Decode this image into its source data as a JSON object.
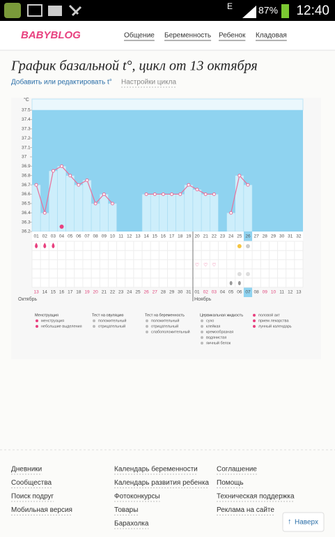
{
  "status_bar": {
    "network": "E",
    "battery": "87%",
    "time": "12:40"
  },
  "header": {
    "logo": "BABYBLOG",
    "nav": [
      "Общение",
      "Беременность",
      "Ребенок",
      "Кладовая"
    ]
  },
  "page": {
    "title": "График базальной t°, цикл от 13 октября",
    "links": [
      "Добавить или редактировать t°",
      "Настройки цикла"
    ]
  },
  "chart_data": {
    "type": "line",
    "y_unit": "°C",
    "categories": [
      "01",
      "02",
      "03",
      "04",
      "05",
      "06",
      "07",
      "08",
      "09",
      "10",
      "11",
      "12",
      "13",
      "14",
      "15",
      "16",
      "17",
      "18",
      "19",
      "20",
      "21",
      "22",
      "23",
      "24",
      "25",
      "26",
      "27",
      "28",
      "29",
      "30",
      "31",
      "32"
    ],
    "dates": [
      "13",
      "14",
      "15",
      "16",
      "17",
      "18",
      "19",
      "20",
      "21",
      "22",
      "23",
      "24",
      "25",
      "26",
      "27",
      "28",
      "29",
      "30",
      "31",
      "01",
      "02",
      "03",
      "04",
      "05",
      "06",
      "07",
      "08",
      "09",
      "10",
      "11",
      "12",
      "13"
    ],
    "months": [
      "Октябрь",
      "Ноябрь"
    ],
    "values": [
      36.7,
      36.4,
      36.85,
      36.9,
      36.8,
      36.7,
      36.75,
      36.5,
      36.6,
      36.5,
      null,
      null,
      null,
      36.6,
      36.6,
      36.6,
      36.6,
      36.6,
      36.7,
      36.65,
      36.6,
      36.6,
      null,
      36.4,
      36.8,
      36.7,
      null,
      null,
      null,
      null,
      null,
      null
    ],
    "ylim": [
      36.2,
      37.5
    ],
    "yticks": [
      36.2,
      36.3,
      36.4,
      36.5,
      36.6,
      36.7,
      36.8,
      36.9,
      37,
      37.1,
      37.2,
      37.3,
      37.4,
      37.5
    ],
    "color": "#e8709a",
    "fill": "#cdeefb",
    "background": "#8fd3f0"
  },
  "legend": [
    {
      "title": "Менструация",
      "items": [
        "менструация",
        "небольшие выделения"
      ]
    },
    {
      "title": "Тест на овуляцию",
      "items": [
        "положительный",
        "отрицательный"
      ]
    },
    {
      "title": "Тест на беременность",
      "items": [
        "положительный",
        "отрицательный",
        "слабоположительный"
      ]
    },
    {
      "title": "Цервикальная жидкость",
      "items": [
        "сухо",
        "клейкая",
        "кремообразная",
        "водянистая",
        "яичный белок"
      ]
    },
    {
      "items": [
        "половой акт",
        "прием лекарства",
        "лунный календарь"
      ]
    }
  ],
  "footer": {
    "columns": [
      [
        "Дневники",
        "Сообщества",
        "Поиск подруг",
        "Мобильная версия"
      ],
      [
        "Календарь беременности",
        "Календарь развития ребенка",
        "Фотоконкурсы",
        "Товары",
        "Барахолка"
      ],
      [
        "Соглашение",
        "Помощь",
        "Техническая поддержка",
        "Реклама на сайте"
      ]
    ],
    "back_to_top": "Наверх"
  }
}
